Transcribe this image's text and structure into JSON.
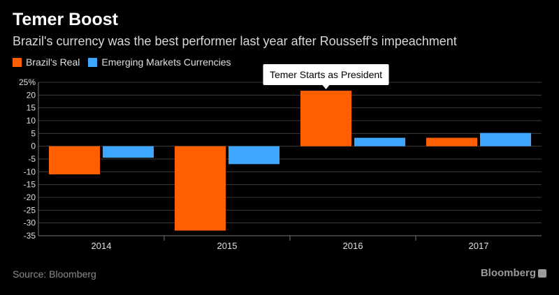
{
  "header": {
    "title": "Temer Boost",
    "subtitle": "Brazil's currency was the best performer last year after Rousseff's impeachment"
  },
  "legend": {
    "items": [
      {
        "label": "Brazil's Real",
        "color": "#ff5f00"
      },
      {
        "label": "Emerging Markets Currencies",
        "color": "#3ea6ff"
      }
    ]
  },
  "annotation": {
    "text": "Temer Starts as President",
    "category": "2016"
  },
  "chart_data": {
    "type": "bar",
    "title": "Temer Boost",
    "subtitle": "Brazil's currency was the best performer last year after Rousseff's impeachment",
    "categories": [
      "2014",
      "2015",
      "2016",
      "2017"
    ],
    "series": [
      {
        "name": "Brazil's Real",
        "color": "#ff5f00",
        "values": [
          -11,
          -33,
          21.7,
          3.3
        ]
      },
      {
        "name": "Emerging Markets Currencies",
        "color": "#3ea6ff",
        "values": [
          -4.5,
          -7,
          3.3,
          5.2
        ]
      }
    ],
    "ylim": [
      -35,
      25
    ],
    "yticks": [
      -35,
      -30,
      -25,
      -20,
      -15,
      -10,
      -5,
      0,
      5,
      10,
      15,
      20,
      25
    ],
    "ytick_labels": [
      "-35",
      "-30",
      "-25",
      "-20",
      "-15",
      "-10",
      "-5",
      "0",
      "5",
      "10",
      "15",
      "20",
      "25%"
    ],
    "xlabel": "",
    "ylabel": "",
    "grid": "horizontal"
  },
  "footer": {
    "source": "Source: Bloomberg",
    "logo_text": "Bloomberg"
  }
}
